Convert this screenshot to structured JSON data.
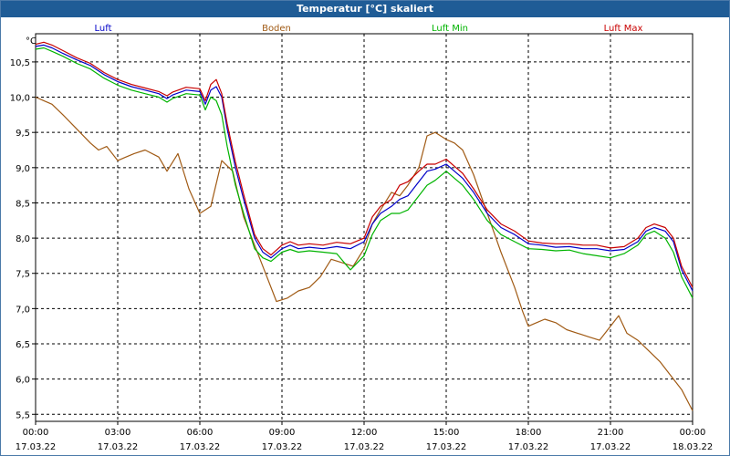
{
  "window": {
    "title": "Temperatur [°C] skaliert"
  },
  "chart_data": {
    "type": "line",
    "title": "Temperatur [°C] skaliert",
    "ylabel": "°C",
    "xlabel": "",
    "ylim": [
      5.4,
      10.9
    ],
    "xlim": [
      0,
      24
    ],
    "grid": true,
    "legend_position": "top",
    "y_ticks": [
      {
        "value": 5.5,
        "label": "5,5"
      },
      {
        "value": 6.0,
        "label": "6,0"
      },
      {
        "value": 6.5,
        "label": "6,5"
      },
      {
        "value": 7.0,
        "label": "7,0"
      },
      {
        "value": 7.5,
        "label": "7,5"
      },
      {
        "value": 8.0,
        "label": "8,0"
      },
      {
        "value": 8.5,
        "label": "8,5"
      },
      {
        "value": 9.0,
        "label": "9,0"
      },
      {
        "value": 9.5,
        "label": "9,5"
      },
      {
        "value": 10.0,
        "label": "10,0"
      },
      {
        "value": 10.5,
        "label": "10,5"
      }
    ],
    "x_ticks": [
      {
        "value": 0,
        "time": "00:00",
        "date": "17.03.22"
      },
      {
        "value": 3,
        "time": "03:00",
        "date": "17.03.22"
      },
      {
        "value": 6,
        "time": "06:00",
        "date": "17.03.22"
      },
      {
        "value": 9,
        "time": "09:00",
        "date": "17.03.22"
      },
      {
        "value": 12,
        "time": "12:00",
        "date": "17.03.22"
      },
      {
        "value": 15,
        "time": "15:00",
        "date": "17.03.22"
      },
      {
        "value": 18,
        "time": "18:00",
        "date": "17.03.22"
      },
      {
        "value": 21,
        "time": "21:00",
        "date": "17.03.22"
      },
      {
        "value": 24,
        "time": "00:00",
        "date": "18.03.22"
      }
    ],
    "series": [
      {
        "name": "Luft",
        "color": "#0000c8",
        "x": [
          0,
          0.3,
          0.6,
          1.0,
          1.5,
          2.0,
          2.5,
          3.0,
          3.5,
          4.0,
          4.5,
          4.8,
          5.0,
          5.5,
          6.0,
          6.2,
          6.4,
          6.6,
          6.8,
          7.0,
          7.3,
          7.6,
          8.0,
          8.3,
          8.6,
          9.0,
          9.3,
          9.6,
          10.0,
          10.5,
          11.0,
          11.5,
          12.0,
          12.3,
          12.6,
          13.0,
          13.3,
          13.6,
          14.0,
          14.3,
          14.6,
          15.0,
          15.3,
          15.6,
          16.0,
          16.5,
          17.0,
          17.5,
          18.0,
          18.5,
          19.0,
          19.5,
          20.0,
          20.5,
          21.0,
          21.5,
          22.0,
          22.3,
          22.6,
          23.0,
          23.3,
          23.6,
          24.0
        ],
        "values": [
          10.72,
          10.74,
          10.7,
          10.62,
          10.53,
          10.45,
          10.32,
          10.22,
          10.15,
          10.1,
          10.05,
          9.98,
          10.03,
          10.1,
          10.08,
          9.9,
          10.1,
          10.15,
          10.0,
          9.55,
          9.0,
          8.55,
          8.0,
          7.8,
          7.72,
          7.85,
          7.9,
          7.85,
          7.87,
          7.85,
          7.88,
          7.85,
          7.95,
          8.2,
          8.35,
          8.45,
          8.55,
          8.6,
          8.8,
          8.95,
          8.98,
          9.05,
          8.95,
          8.85,
          8.65,
          8.35,
          8.15,
          8.05,
          7.92,
          7.9,
          7.87,
          7.88,
          7.85,
          7.85,
          7.82,
          7.84,
          7.95,
          8.1,
          8.15,
          8.1,
          7.95,
          7.55,
          7.25
        ]
      },
      {
        "name": "Boden",
        "color": "#a05a14",
        "x": [
          0,
          0.3,
          0.6,
          1.0,
          1.5,
          2.0,
          2.3,
          2.6,
          3.0,
          3.3,
          3.6,
          4.0,
          4.5,
          4.8,
          5.2,
          5.6,
          6.0,
          6.4,
          6.8,
          7.2,
          7.6,
          8.0,
          8.4,
          8.8,
          9.2,
          9.6,
          10.0,
          10.4,
          10.8,
          11.2,
          11.6,
          12.0,
          12.3,
          12.6,
          13.0,
          13.3,
          13.6,
          14.0,
          14.3,
          14.6,
          15.0,
          15.3,
          15.6,
          16.0,
          16.5,
          17.0,
          17.5,
          17.8,
          18.0,
          18.3,
          18.6,
          19.0,
          19.4,
          19.8,
          20.2,
          20.6,
          21.0,
          21.3,
          21.6,
          22.0,
          22.4,
          22.8,
          23.2,
          23.6,
          24.0
        ],
        "values": [
          10.0,
          9.95,
          9.9,
          9.75,
          9.55,
          9.35,
          9.25,
          9.3,
          9.1,
          9.15,
          9.2,
          9.25,
          9.15,
          8.95,
          9.2,
          8.7,
          8.35,
          8.45,
          9.1,
          8.95,
          8.3,
          7.9,
          7.5,
          7.1,
          7.15,
          7.25,
          7.3,
          7.45,
          7.7,
          7.65,
          7.6,
          7.85,
          8.2,
          8.4,
          8.65,
          8.6,
          8.75,
          9.0,
          9.45,
          9.5,
          9.4,
          9.35,
          9.25,
          8.9,
          8.35,
          7.8,
          7.3,
          6.95,
          6.75,
          6.8,
          6.85,
          6.8,
          6.7,
          6.65,
          6.6,
          6.55,
          6.75,
          6.9,
          6.65,
          6.55,
          6.4,
          6.25,
          6.05,
          5.85,
          5.55
        ]
      },
      {
        "name": "Luft Min",
        "color": "#00b400",
        "x": [
          0,
          0.3,
          0.6,
          1.0,
          1.5,
          2.0,
          2.5,
          3.0,
          3.5,
          4.0,
          4.5,
          4.8,
          5.0,
          5.5,
          6.0,
          6.2,
          6.4,
          6.6,
          6.8,
          7.0,
          7.3,
          7.6,
          8.0,
          8.3,
          8.6,
          9.0,
          9.3,
          9.6,
          10.0,
          10.5,
          11.0,
          11.5,
          12.0,
          12.3,
          12.6,
          13.0,
          13.3,
          13.6,
          14.0,
          14.3,
          14.6,
          15.0,
          15.3,
          15.6,
          16.0,
          16.5,
          17.0,
          17.5,
          18.0,
          18.5,
          19.0,
          19.5,
          20.0,
          20.5,
          21.0,
          21.5,
          22.0,
          22.3,
          22.6,
          23.0,
          23.3,
          23.6,
          24.0
        ],
        "values": [
          10.68,
          10.7,
          10.65,
          10.58,
          10.48,
          10.4,
          10.27,
          10.17,
          10.1,
          10.05,
          10.0,
          9.93,
          9.98,
          10.05,
          10.03,
          9.82,
          10.0,
          9.95,
          9.75,
          9.3,
          8.75,
          8.35,
          7.85,
          7.72,
          7.67,
          7.8,
          7.84,
          7.8,
          7.82,
          7.8,
          7.78,
          7.55,
          7.75,
          8.05,
          8.25,
          8.35,
          8.35,
          8.4,
          8.6,
          8.75,
          8.82,
          8.95,
          8.85,
          8.75,
          8.55,
          8.25,
          8.05,
          7.95,
          7.85,
          7.84,
          7.82,
          7.83,
          7.78,
          7.75,
          7.72,
          7.78,
          7.9,
          8.05,
          8.1,
          8.0,
          7.8,
          7.45,
          7.15
        ]
      },
      {
        "name": "Luft Max",
        "color": "#c80000",
        "x": [
          0,
          0.3,
          0.6,
          1.0,
          1.5,
          2.0,
          2.5,
          3.0,
          3.5,
          4.0,
          4.5,
          4.8,
          5.0,
          5.5,
          6.0,
          6.2,
          6.4,
          6.6,
          6.8,
          7.0,
          7.3,
          7.6,
          8.0,
          8.3,
          8.6,
          9.0,
          9.3,
          9.6,
          10.0,
          10.5,
          11.0,
          11.5,
          12.0,
          12.3,
          12.6,
          13.0,
          13.3,
          13.6,
          14.0,
          14.3,
          14.6,
          15.0,
          15.3,
          15.6,
          16.0,
          16.5,
          17.0,
          17.5,
          18.0,
          18.5,
          19.0,
          19.5,
          20.0,
          20.5,
          21.0,
          21.5,
          22.0,
          22.3,
          22.6,
          23.0,
          23.3,
          23.6,
          24.0
        ],
        "values": [
          10.75,
          10.78,
          10.74,
          10.66,
          10.56,
          10.48,
          10.35,
          10.25,
          10.18,
          10.13,
          10.08,
          10.02,
          10.07,
          10.14,
          10.12,
          9.95,
          10.18,
          10.25,
          10.05,
          9.62,
          9.08,
          8.62,
          8.05,
          7.85,
          7.76,
          7.9,
          7.95,
          7.9,
          7.92,
          7.9,
          7.94,
          7.92,
          8.0,
          8.3,
          8.45,
          8.55,
          8.75,
          8.8,
          8.95,
          9.05,
          9.05,
          9.12,
          9.02,
          8.92,
          8.7,
          8.4,
          8.2,
          8.1,
          7.96,
          7.93,
          7.92,
          7.92,
          7.9,
          7.9,
          7.86,
          7.88,
          8.0,
          8.15,
          8.2,
          8.15,
          8.0,
          7.6,
          7.3
        ]
      }
    ]
  }
}
